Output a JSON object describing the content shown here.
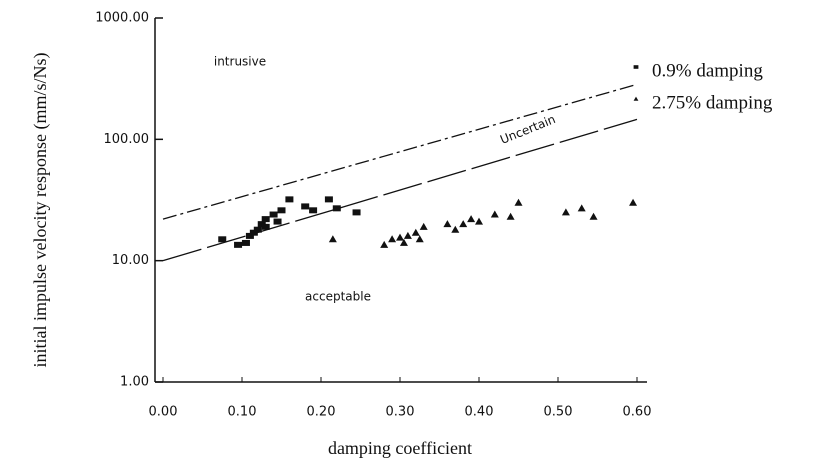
{
  "chart_data": {
    "type": "scatter",
    "xlabel": "damping coefficient",
    "ylabel": "initial impulse velocity response (mm/s/Ns)",
    "xlim": [
      0,
      0.6
    ],
    "xticks": [
      {
        "value": 0,
        "label": "0.00"
      },
      {
        "value": 0.1,
        "label": "0.10"
      },
      {
        "value": 0.2,
        "label": "0.20"
      },
      {
        "value": 0.3,
        "label": "0.30"
      },
      {
        "value": 0.4,
        "label": "0.40"
      },
      {
        "value": 0.5,
        "label": "0.50"
      },
      {
        "value": 0.6,
        "label": "0.60"
      }
    ],
    "ylim": [
      1,
      1000
    ],
    "yscale": "log",
    "yticks": [
      {
        "value": 1,
        "label": "1.00"
      },
      {
        "value": 10,
        "label": "10.00"
      },
      {
        "value": 100,
        "label": "100.00"
      },
      {
        "value": 1000,
        "label": "1000.00"
      }
    ],
    "legend": "upper right",
    "annotations": [
      "intrusive",
      "Uncertain",
      "acceptable"
    ],
    "series": [
      {
        "name": "0.9% damping",
        "marker": "square",
        "color": "#111111",
        "x": [
          0.075,
          0.095,
          0.105,
          0.11,
          0.115,
          0.12,
          0.125,
          0.13,
          0.13,
          0.14,
          0.145,
          0.15,
          0.16,
          0.18,
          0.19,
          0.21,
          0.22,
          0.245
        ],
        "values": [
          15,
          13.5,
          14,
          16,
          17,
          18,
          20,
          22,
          19,
          24,
          21,
          26,
          32,
          28,
          26,
          32,
          27,
          25
        ]
      },
      {
        "name": "2.75% damping",
        "marker": "triangle",
        "color": "#111111",
        "x": [
          0.215,
          0.28,
          0.29,
          0.3,
          0.305,
          0.31,
          0.32,
          0.325,
          0.33,
          0.36,
          0.37,
          0.38,
          0.39,
          0.4,
          0.42,
          0.44,
          0.45,
          0.51,
          0.53,
          0.545,
          0.595
        ],
        "values": [
          15,
          13.5,
          15,
          15.5,
          14,
          16,
          17,
          15,
          19,
          20,
          18,
          20,
          22,
          21,
          24,
          23,
          30,
          25,
          27,
          23,
          30
        ]
      }
    ],
    "lines": [
      {
        "x": [
          0,
          0.6
        ],
        "values": [
          22,
          284
        ],
        "style": "dashdot",
        "color": "#111111"
      },
      {
        "x": [
          0,
          0.6
        ],
        "values": [
          10,
          146
        ],
        "style": "longdash",
        "color": "#111111"
      }
    ]
  }
}
